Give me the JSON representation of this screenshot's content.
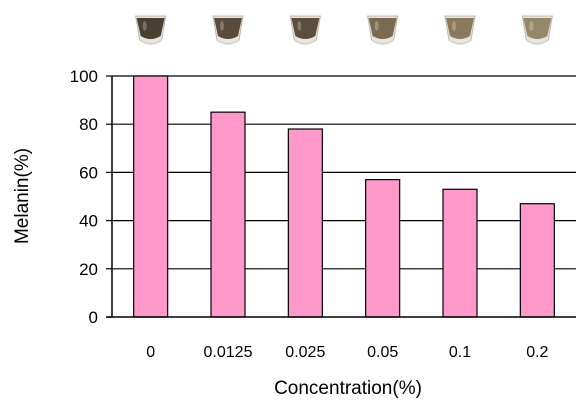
{
  "chart_data": {
    "type": "bar",
    "categories": [
      "0",
      "0.0125",
      "0.025",
      "0.05",
      "0.1",
      "0.2"
    ],
    "values": [
      100,
      85,
      78,
      57,
      53,
      47
    ],
    "xlabel": "Concentration(%)",
    "ylabel": "Melanin(%)",
    "ylim": [
      0,
      100
    ],
    "yticks": [
      0,
      20,
      40,
      60,
      80,
      100
    ],
    "grid": true,
    "legend": "none",
    "colors": {
      "bar_fill": "#ff99cc",
      "bar_stroke": "#000000",
      "grid": "#000000",
      "axis": "#000000"
    }
  },
  "tube_images": {
    "count": 6,
    "liquid_colors": [
      "#4a3f33",
      "#5a4c3c",
      "#5c4d3d",
      "#7a6a50",
      "#8a7a5c",
      "#958868"
    ]
  }
}
